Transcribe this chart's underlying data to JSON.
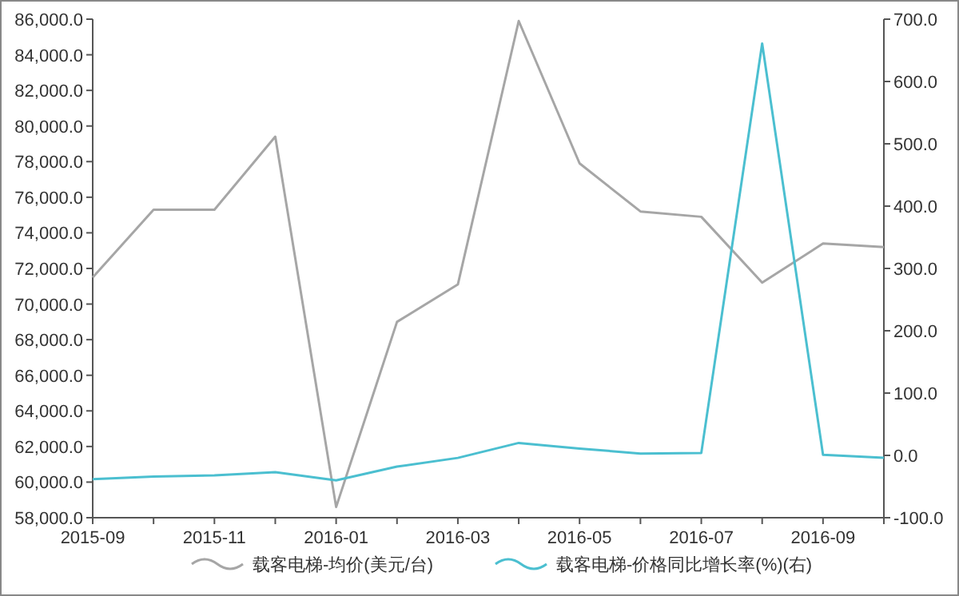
{
  "chart_data": {
    "type": "line",
    "categories": [
      "2015-09",
      null,
      "2015-11",
      null,
      "2016-01",
      null,
      "2016-03",
      null,
      "2016-05",
      null,
      "2016-07",
      null,
      "2016-09",
      null
    ],
    "series": [
      {
        "name": "载客电梯-均价(美元/台)",
        "color": "#a6a6a6",
        "values": [
          71500,
          75300,
          75300,
          79400,
          58600,
          69000,
          71100,
          85900,
          77900,
          75200,
          74900,
          71200,
          73400,
          73200
        ]
      },
      {
        "name": "载客电梯-价格同比增长率(%)(右)",
        "color": "#4bbfd0",
        "axis": "y2",
        "values": [
          -38,
          -34,
          -32,
          -27,
          -40,
          -18,
          -4,
          20,
          11,
          3,
          4,
          661,
          1,
          -4
        ]
      }
    ],
    "ylim": [
      58000,
      86000
    ],
    "yticks": [
      {
        "value": 58000,
        "label": "58,000.0"
      },
      {
        "value": 60000,
        "label": "60,000.0"
      },
      {
        "value": 62000,
        "label": "62,000.0"
      },
      {
        "value": 64000,
        "label": "64,000.0"
      },
      {
        "value": 66000,
        "label": "66,000.0"
      },
      {
        "value": 68000,
        "label": "68,000.0"
      },
      {
        "value": 70000,
        "label": "70,000.0"
      },
      {
        "value": 72000,
        "label": "72,000.0"
      },
      {
        "value": 74000,
        "label": "74,000.0"
      },
      {
        "value": 76000,
        "label": "76,000.0"
      },
      {
        "value": 78000,
        "label": "78,000.0"
      },
      {
        "value": 80000,
        "label": "80,000.0"
      },
      {
        "value": 82000,
        "label": "82,000.0"
      },
      {
        "value": 84000,
        "label": "84,000.0"
      },
      {
        "value": 86000,
        "label": "86,000.0"
      }
    ],
    "y2lim": [
      -100,
      700
    ],
    "y2ticks": [
      {
        "value": -100,
        "label": "-100.0"
      },
      {
        "value": 0,
        "label": "0.0"
      },
      {
        "value": 100,
        "label": "100.0"
      },
      {
        "value": 200,
        "label": "200.0"
      },
      {
        "value": 300,
        "label": "300.0"
      },
      {
        "value": 400,
        "label": "400.0"
      },
      {
        "value": 500,
        "label": "500.0"
      },
      {
        "value": 600,
        "label": "600.0"
      },
      {
        "value": 700,
        "label": "700.0"
      }
    ],
    "grid": false,
    "legend": "bottom",
    "marker": "none",
    "line_style": "solid"
  }
}
